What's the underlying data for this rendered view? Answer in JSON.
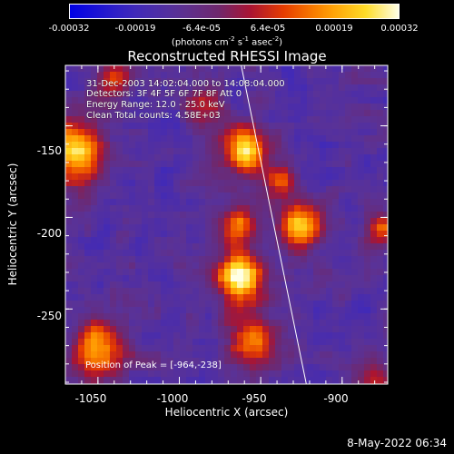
{
  "colorbar": {
    "ticks": [
      "-0.00032",
      "-0.00019",
      "-6.4e-05",
      "6.4e-05",
      "0.00019",
      "0.00032"
    ],
    "units_prefix": "(photons cm",
    "units_sup1": "-2",
    "units_mid1": " s",
    "units_sup2": "-1",
    "units_mid2": " asec",
    "units_sup3": "-2",
    "units_suffix": ")"
  },
  "chart_data": {
    "type": "heatmap",
    "title": "Reconstructed RHESSI Image",
    "xlabel": "Heliocentric X (arcsec)",
    "ylabel": "Heliocentric Y (arcsec)",
    "xlim": [
      -1070,
      -872
    ],
    "ylim": [
      -291,
      -117
    ],
    "xticks": [
      "-1050",
      "-1000",
      "-950",
      "-900"
    ],
    "xtick_values": [
      -1050,
      -1000,
      -950,
      -900
    ],
    "yticks": [
      "-150",
      "-200",
      "-250"
    ],
    "ytick_values": [
      -150,
      -200,
      -250
    ],
    "zlim": [
      -0.00032,
      0.00032
    ],
    "peak": [
      -964,
      -238
    ],
    "annotations": [
      "31-Dec-2003 14:02:04.000 to 14:08:04.000",
      "Detectors: 3F 4F 5F 6F 7F 8F Att 0",
      "Energy Range: 12.0 - 25.0 keV",
      "Clean    Total counts: 4.58E+03"
    ],
    "peak_label": "Position of Peak = [-964,-238]",
    "sources": [
      {
        "x": -963,
        "y": -233,
        "amp": 1.0,
        "r": 10
      },
      {
        "x": -960,
        "y": -163,
        "amp": 0.95,
        "r": 9
      },
      {
        "x": -925,
        "y": -205,
        "amp": 0.8,
        "r": 9
      },
      {
        "x": -1063,
        "y": -165,
        "amp": 0.85,
        "r": 12
      },
      {
        "x": -1050,
        "y": -272,
        "amp": 0.7,
        "r": 12
      },
      {
        "x": -965,
        "y": -205,
        "amp": 0.6,
        "r": 8
      },
      {
        "x": -955,
        "y": -268,
        "amp": 0.65,
        "r": 10
      },
      {
        "x": -938,
        "y": -180,
        "amp": 0.55,
        "r": 7
      },
      {
        "x": -1040,
        "y": -125,
        "amp": 0.5,
        "r": 8
      },
      {
        "x": -985,
        "y": -140,
        "amp": 0.45,
        "r": 7
      },
      {
        "x": -875,
        "y": -205,
        "amp": 0.5,
        "r": 7
      },
      {
        "x": -880,
        "y": -290,
        "amp": 0.4,
        "r": 9
      }
    ],
    "limb_line": [
      [
        -962,
        -117
      ],
      [
        -922,
        -291
      ]
    ]
  },
  "timestamp": "8-May-2022 06:34"
}
